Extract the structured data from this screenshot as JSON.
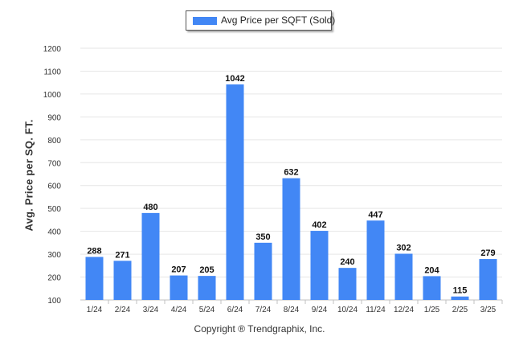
{
  "chart_data": {
    "type": "bar",
    "categories": [
      "1/24",
      "2/24",
      "3/24",
      "4/24",
      "5/24",
      "6/24",
      "7/24",
      "8/24",
      "9/24",
      "10/24",
      "11/24",
      "12/24",
      "1/25",
      "2/25",
      "3/25"
    ],
    "series": [
      {
        "name": "Avg Price per SQFT (Sold)",
        "values": [
          288,
          271,
          480,
          207,
          205,
          1042,
          350,
          632,
          402,
          240,
          447,
          302,
          204,
          115,
          279
        ]
      }
    ],
    "ylabel": "Avg. Price per SQ. FT.",
    "xlabel": "",
    "ylim": [
      100,
      1200
    ],
    "yticks": [
      100,
      200,
      300,
      400,
      500,
      600,
      700,
      800,
      900,
      1000,
      1100,
      1200
    ],
    "grid": true,
    "legend_position": "top-center",
    "bar_color": "#4287f5",
    "data_labels": true
  },
  "footer": "Copyright ® Trendgraphix, Inc."
}
